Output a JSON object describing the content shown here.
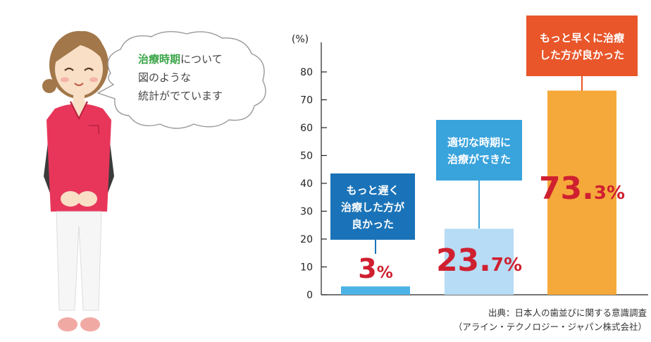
{
  "speech_bubble": {
    "highlight": "治療時期",
    "line1_rest": "について",
    "line2": "図のような",
    "line3": "統計がでています"
  },
  "chart_data": {
    "type": "bar",
    "categories": [
      "もっと遅く治療した方が良かった",
      "適切な時期に治療ができた",
      "もっと早くに治療した方が良かった"
    ],
    "values": [
      3,
      23.7,
      73.3
    ],
    "value_labels": [
      {
        "num": "3",
        "unit": "%"
      },
      {
        "num": "23.",
        "small": "7",
        "unit": "%"
      },
      {
        "num": "73.",
        "small": "3",
        "unit": "%"
      }
    ],
    "ylabel": "(%)",
    "ylim": [
      0,
      80
    ],
    "yticks": [
      0,
      10,
      20,
      30,
      40,
      50,
      60,
      70,
      80
    ],
    "colors": [
      "#4db3e6",
      "#b7dcf5",
      "#f5a93a"
    ],
    "label_colors": [
      "#1a73b8",
      "#39a3dc",
      "#e8562a"
    ],
    "callouts": [
      [
        "もっと遅く",
        "治療した方が",
        "良かった"
      ],
      [
        "適切な時期に",
        "治療ができた"
      ],
      [
        "もっと早くに治療",
        "した方が良かった"
      ]
    ]
  },
  "source": {
    "line1": "出典：日本人の歯並びに関する意識調査",
    "line2": "（アライン・テクノロジー・ジャパン株式会社）"
  }
}
